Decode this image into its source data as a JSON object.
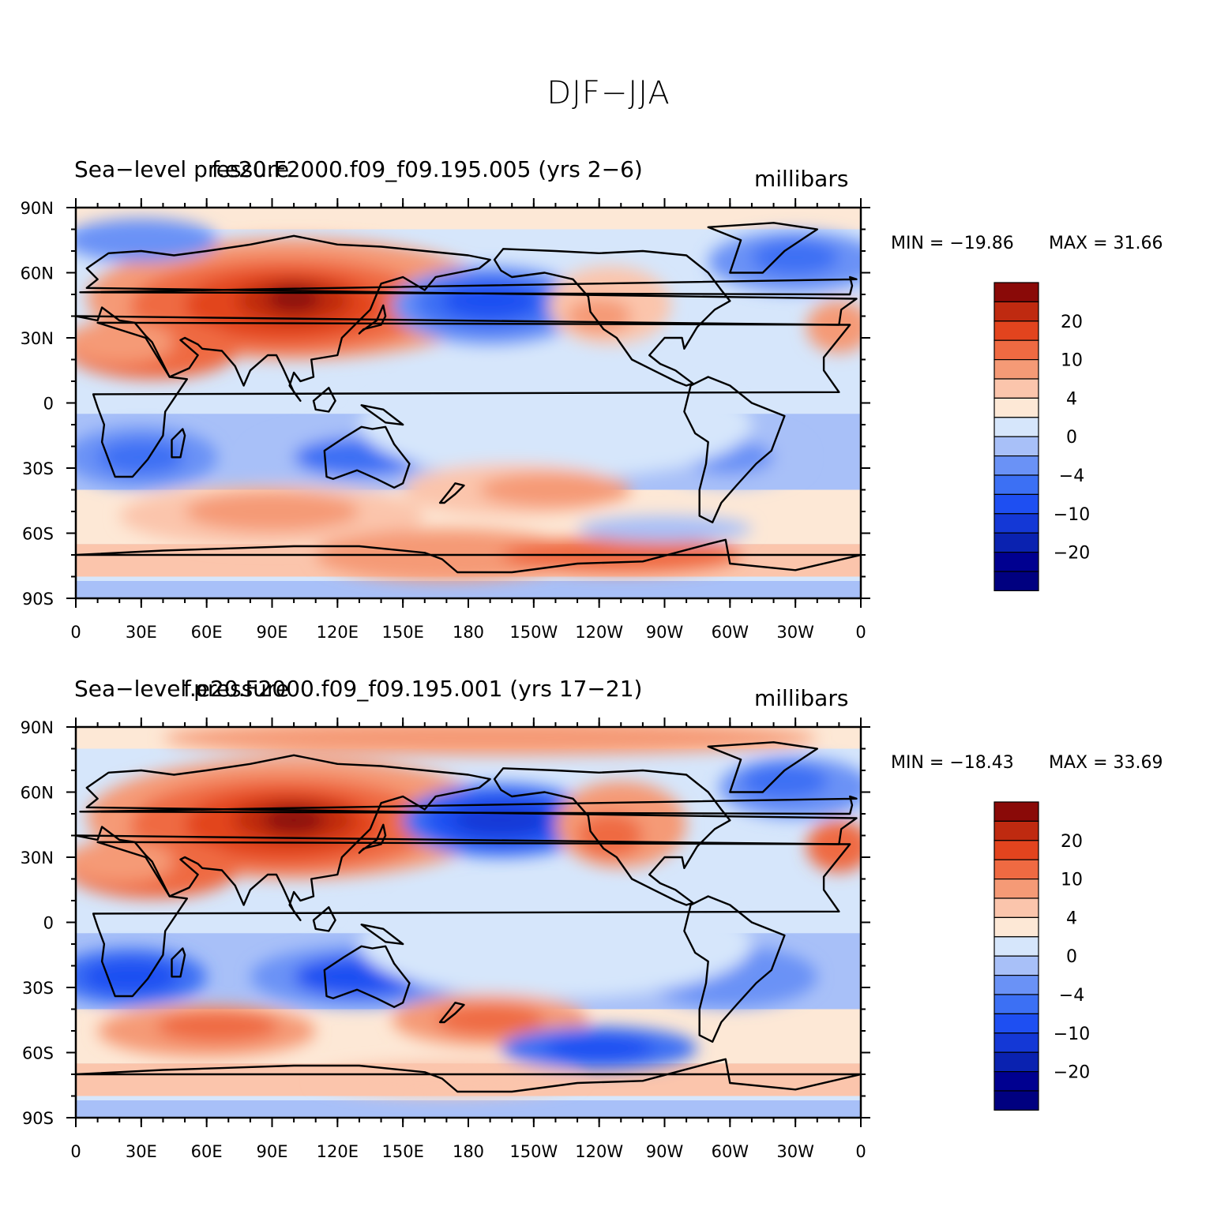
{
  "title": "DJF−JJA",
  "colors": {
    "levels": [
      "#000090",
      "#0a22b0",
      "#1438d6",
      "#1e4ff2",
      "#3c70f4",
      "#6a92f6",
      "#a8c0f8",
      "#d6e6fb",
      "#fde8d6",
      "#fbc5ac",
      "#f59a76",
      "#ef6a42",
      "#e2441e",
      "#bf2a10",
      "#8a0a08"
    ]
  },
  "panels": [
    {
      "left_title": "Sea−level pressure",
      "center_title": "f.e20.F2000.f09_f09.195.005 (yrs 2−6)",
      "units": "millibars",
      "min_label": "MIN = −19.86",
      "max_label": "MAX =   31.66"
    },
    {
      "left_title": "Sea−level pressure",
      "center_title": "f.e20.F2000.f09_f09.195.001 (yrs 17−21)",
      "units": "millibars",
      "min_label": "MIN = −18.43",
      "max_label": "MAX =   33.69"
    }
  ],
  "y_ticks": [
    "90N",
    "60N",
    "30N",
    "0",
    "30S",
    "60S",
    "90S"
  ],
  "x_ticks": [
    "0",
    "30E",
    "60E",
    "90E",
    "120E",
    "150E",
    "180",
    "150W",
    "120W",
    "90W",
    "60W",
    "30W",
    "0"
  ],
  "colorbar_labels": [
    "20",
    "10",
    "4",
    "0",
    "−4",
    "−10",
    "−20"
  ]
}
